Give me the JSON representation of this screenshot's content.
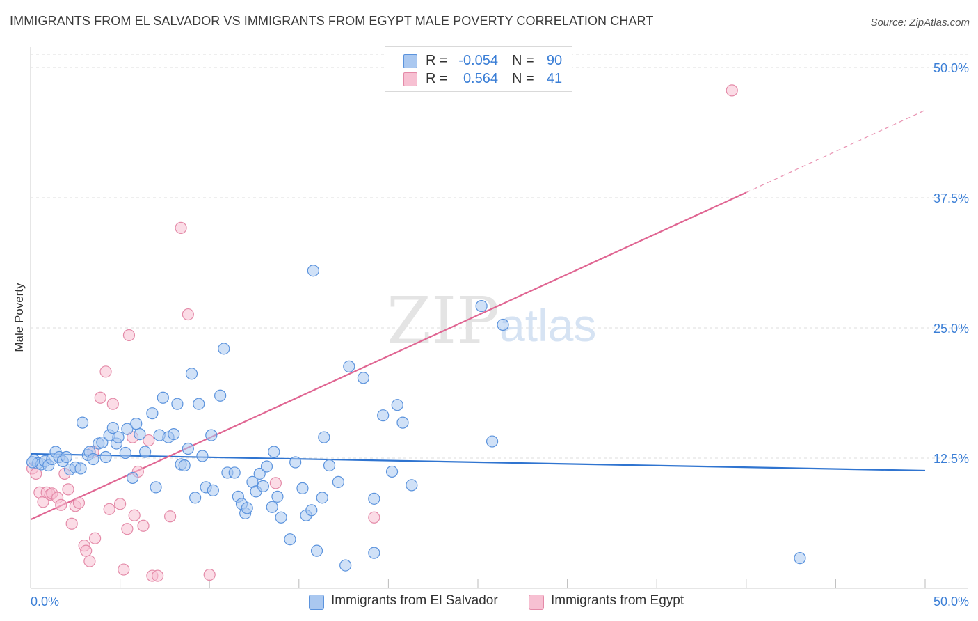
{
  "title": "IMMIGRANTS FROM EL SALVADOR VS IMMIGRANTS FROM EGYPT MALE POVERTY CORRELATION CHART",
  "source": "Source: ZipAtlas.com",
  "watermark": {
    "zip": "ZIP",
    "atlas": "atlas"
  },
  "legend": {
    "r_label": "R =",
    "n_label": "N =",
    "rows": [
      {
        "r": "-0.054",
        "n": "90"
      },
      {
        "r": "0.564",
        "n": "41"
      }
    ]
  },
  "bottom_legend": [
    "Immigrants from El Salvador",
    "Immigrants from Egypt"
  ],
  "colors": {
    "blue_fill": "#aac8f0",
    "blue_stroke": "#5b93dd",
    "blue_line": "#2f74d0",
    "pink_fill": "#f7c0d2",
    "pink_stroke": "#e48aa8",
    "pink_line": "#e06592",
    "tick_text": "#3a7ed6",
    "grid": "#dddddd"
  },
  "chart_data": {
    "type": "scatter",
    "ylabel": "Male Poverty",
    "xlim": [
      0,
      50
    ],
    "ylim": [
      0,
      50
    ],
    "y_ticks": [
      "12.5%",
      "25.0%",
      "37.5%",
      "50.0%"
    ],
    "x_tick_labels": [
      "0.0%",
      "50.0%"
    ],
    "y_tick_values": [
      12.5,
      25.0,
      37.5,
      50.0
    ],
    "x_tick_values": [
      5,
      10,
      15,
      20,
      25,
      30,
      35,
      40,
      45,
      50
    ],
    "grid": true,
    "series": [
      {
        "name": "Immigrants from El Salvador",
        "color": "blue",
        "trend": {
          "x": [
            0,
            50
          ],
          "y": [
            12.9,
            11.3
          ],
          "dashed_from": null
        },
        "points": [
          [
            0.2,
            12.3
          ],
          [
            0.4,
            12.0
          ],
          [
            0.6,
            11.9
          ],
          [
            0.8,
            12.2
          ],
          [
            1.0,
            11.8
          ],
          [
            1.2,
            12.4
          ],
          [
            1.4,
            13.1
          ],
          [
            1.6,
            12.6
          ],
          [
            1.8,
            12.2
          ],
          [
            2.0,
            12.6
          ],
          [
            2.2,
            11.4
          ],
          [
            2.5,
            11.6
          ],
          [
            2.8,
            11.5
          ],
          [
            2.9,
            15.9
          ],
          [
            3.2,
            12.8
          ],
          [
            3.3,
            13.1
          ],
          [
            3.5,
            12.4
          ],
          [
            3.8,
            13.9
          ],
          [
            4.0,
            14.0
          ],
          [
            4.2,
            12.6
          ],
          [
            4.4,
            14.7
          ],
          [
            4.6,
            15.4
          ],
          [
            4.8,
            13.9
          ],
          [
            4.9,
            14.5
          ],
          [
            5.3,
            13.0
          ],
          [
            5.4,
            15.3
          ],
          [
            5.7,
            10.6
          ],
          [
            5.9,
            15.8
          ],
          [
            6.1,
            14.8
          ],
          [
            6.4,
            13.1
          ],
          [
            6.8,
            16.8
          ],
          [
            7.0,
            9.7
          ],
          [
            7.2,
            14.7
          ],
          [
            7.4,
            18.3
          ],
          [
            7.7,
            14.5
          ],
          [
            8.0,
            14.8
          ],
          [
            8.2,
            17.7
          ],
          [
            8.4,
            11.9
          ],
          [
            8.6,
            11.8
          ],
          [
            8.8,
            13.4
          ],
          [
            9.0,
            20.6
          ],
          [
            9.2,
            8.7
          ],
          [
            9.4,
            17.7
          ],
          [
            9.6,
            12.7
          ],
          [
            9.8,
            9.7
          ],
          [
            10.1,
            14.7
          ],
          [
            10.2,
            9.4
          ],
          [
            10.6,
            18.5
          ],
          [
            10.8,
            23.0
          ],
          [
            11.0,
            11.1
          ],
          [
            11.4,
            11.1
          ],
          [
            11.6,
            8.8
          ],
          [
            11.8,
            8.1
          ],
          [
            12.0,
            7.2
          ],
          [
            12.1,
            7.7
          ],
          [
            12.4,
            10.2
          ],
          [
            12.6,
            9.3
          ],
          [
            12.8,
            11.0
          ],
          [
            13.0,
            9.8
          ],
          [
            13.2,
            11.7
          ],
          [
            13.5,
            7.8
          ],
          [
            13.6,
            13.1
          ],
          [
            13.8,
            8.8
          ],
          [
            14.0,
            6.8
          ],
          [
            14.5,
            4.7
          ],
          [
            14.8,
            12.1
          ],
          [
            15.2,
            9.6
          ],
          [
            15.4,
            7.0
          ],
          [
            15.7,
            7.5
          ],
          [
            15.8,
            30.5
          ],
          [
            16.0,
            3.6
          ],
          [
            16.3,
            8.7
          ],
          [
            16.4,
            14.5
          ],
          [
            16.7,
            11.8
          ],
          [
            17.2,
            10.2
          ],
          [
            17.6,
            2.2
          ],
          [
            17.8,
            21.3
          ],
          [
            18.6,
            20.2
          ],
          [
            19.2,
            8.6
          ],
          [
            19.2,
            3.4
          ],
          [
            19.7,
            16.6
          ],
          [
            20.2,
            11.2
          ],
          [
            20.5,
            17.6
          ],
          [
            20.8,
            15.9
          ],
          [
            21.3,
            9.9
          ],
          [
            25.2,
            27.1
          ],
          [
            25.8,
            14.1
          ],
          [
            26.4,
            25.3
          ],
          [
            43.0,
            2.9
          ],
          [
            0.1,
            12.1
          ]
        ]
      },
      {
        "name": "Immigrants from Egypt",
        "color": "pink",
        "trend": {
          "x": [
            0,
            40
          ],
          "y": [
            6.6,
            38.0
          ],
          "dashed_to_x": 50,
          "dashed_to_y": 45.9
        },
        "points": [
          [
            0.1,
            11.5
          ],
          [
            0.3,
            11.0
          ],
          [
            0.5,
            9.2
          ],
          [
            0.7,
            8.3
          ],
          [
            0.9,
            9.2
          ],
          [
            1.1,
            9.0
          ],
          [
            1.2,
            9.1
          ],
          [
            1.5,
            8.7
          ],
          [
            1.7,
            8.0
          ],
          [
            1.9,
            11.0
          ],
          [
            2.1,
            9.5
          ],
          [
            2.3,
            6.2
          ],
          [
            2.5,
            7.9
          ],
          [
            2.7,
            8.2
          ],
          [
            3.0,
            4.1
          ],
          [
            3.1,
            3.6
          ],
          [
            3.3,
            2.6
          ],
          [
            3.5,
            13.1
          ],
          [
            3.6,
            4.8
          ],
          [
            3.9,
            18.3
          ],
          [
            4.2,
            20.8
          ],
          [
            4.4,
            7.6
          ],
          [
            4.6,
            17.7
          ],
          [
            5.0,
            8.1
          ],
          [
            5.2,
            1.8
          ],
          [
            5.4,
            5.7
          ],
          [
            5.5,
            24.3
          ],
          [
            5.7,
            14.5
          ],
          [
            5.8,
            7.0
          ],
          [
            6.0,
            11.2
          ],
          [
            6.3,
            6.0
          ],
          [
            6.6,
            14.2
          ],
          [
            6.8,
            1.2
          ],
          [
            7.1,
            1.2
          ],
          [
            7.8,
            6.9
          ],
          [
            8.4,
            34.6
          ],
          [
            8.8,
            26.3
          ],
          [
            10.0,
            1.3
          ],
          [
            13.7,
            10.1
          ],
          [
            19.2,
            6.8
          ],
          [
            39.2,
            47.8
          ]
        ]
      }
    ]
  }
}
